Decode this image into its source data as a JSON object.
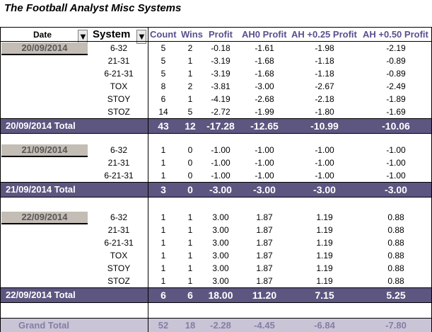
{
  "title": "The Football Analyst Misc Systems",
  "headers": {
    "date": "Date",
    "system": "System",
    "count": "Count",
    "wins": "Wins",
    "profit": "Profit",
    "ah0": "AH0 Profit",
    "ah25": "AH +0.25 Profit",
    "ah50": "AH +0.50 Profit"
  },
  "filter_icons": {
    "date": "filter-icon",
    "system": "dropdown-arrow-icon"
  },
  "colors": {
    "total_bg": "#5d5680",
    "header_text": "#5b4f8e",
    "date_bg": "#c4bdb5",
    "grand_bg": "#c9c4d6"
  },
  "groups": [
    {
      "date": "20/09/2014",
      "rows": [
        {
          "system": "6-32",
          "count": "5",
          "wins": "2",
          "profit": "-0.18",
          "ah0": "-1.61",
          "ah25": "-1.98",
          "ah50": "-2.19"
        },
        {
          "system": "21-31",
          "count": "5",
          "wins": "1",
          "profit": "-3.19",
          "ah0": "-1.68",
          "ah25": "-1.18",
          "ah50": "-0.89"
        },
        {
          "system": "6-21-31",
          "count": "5",
          "wins": "1",
          "profit": "-3.19",
          "ah0": "-1.68",
          "ah25": "-1.18",
          "ah50": "-0.89"
        },
        {
          "system": "TOX",
          "count": "8",
          "wins": "2",
          "profit": "-3.81",
          "ah0": "-3.00",
          "ah25": "-2.67",
          "ah50": "-2.49"
        },
        {
          "system": "STOY",
          "count": "6",
          "wins": "1",
          "profit": "-4.19",
          "ah0": "-2.68",
          "ah25": "-2.18",
          "ah50": "-1.89"
        },
        {
          "system": "STOZ",
          "count": "14",
          "wins": "5",
          "profit": "-2.72",
          "ah0": "-1.99",
          "ah25": "-1.80",
          "ah50": "-1.69"
        }
      ],
      "total": {
        "label": "20/09/2014 Total",
        "count": "43",
        "wins": "12",
        "profit": "-17.28",
        "ah0": "-12.65",
        "ah25": "-10.99",
        "ah50": "-10.06"
      }
    },
    {
      "date": "21/09/2014",
      "rows": [
        {
          "system": "6-32",
          "count": "1",
          "wins": "0",
          "profit": "-1.00",
          "ah0": "-1.00",
          "ah25": "-1.00",
          "ah50": "-1.00"
        },
        {
          "system": "21-31",
          "count": "1",
          "wins": "0",
          "profit": "-1.00",
          "ah0": "-1.00",
          "ah25": "-1.00",
          "ah50": "-1.00"
        },
        {
          "system": "6-21-31",
          "count": "1",
          "wins": "0",
          "profit": "-1.00",
          "ah0": "-1.00",
          "ah25": "-1.00",
          "ah50": "-1.00"
        }
      ],
      "total": {
        "label": "21/09/2014 Total",
        "count": "3",
        "wins": "0",
        "profit": "-3.00",
        "ah0": "-3.00",
        "ah25": "-3.00",
        "ah50": "-3.00"
      }
    },
    {
      "date": "22/09/2014",
      "rows": [
        {
          "system": "6-32",
          "count": "1",
          "wins": "1",
          "profit": "3.00",
          "ah0": "1.87",
          "ah25": "1.19",
          "ah50": "0.88"
        },
        {
          "system": "21-31",
          "count": "1",
          "wins": "1",
          "profit": "3.00",
          "ah0": "1.87",
          "ah25": "1.19",
          "ah50": "0.88"
        },
        {
          "system": "6-21-31",
          "count": "1",
          "wins": "1",
          "profit": "3.00",
          "ah0": "1.87",
          "ah25": "1.19",
          "ah50": "0.88"
        },
        {
          "system": "TOX",
          "count": "1",
          "wins": "1",
          "profit": "3.00",
          "ah0": "1.87",
          "ah25": "1.19",
          "ah50": "0.88"
        },
        {
          "system": "STOY",
          "count": "1",
          "wins": "1",
          "profit": "3.00",
          "ah0": "1.87",
          "ah25": "1.19",
          "ah50": "0.88"
        },
        {
          "system": "STOZ",
          "count": "1",
          "wins": "1",
          "profit": "3.00",
          "ah0": "1.87",
          "ah25": "1.19",
          "ah50": "0.88"
        }
      ],
      "total": {
        "label": "22/09/2014 Total",
        "count": "6",
        "wins": "6",
        "profit": "18.00",
        "ah0": "11.20",
        "ah25": "7.15",
        "ah50": "5.25"
      }
    }
  ],
  "grand_total": {
    "label": "Grand Total",
    "count": "52",
    "wins": "18",
    "profit": "-2.28",
    "ah0": "-4.45",
    "ah25": "-6.84",
    "ah50": "-7.80"
  }
}
